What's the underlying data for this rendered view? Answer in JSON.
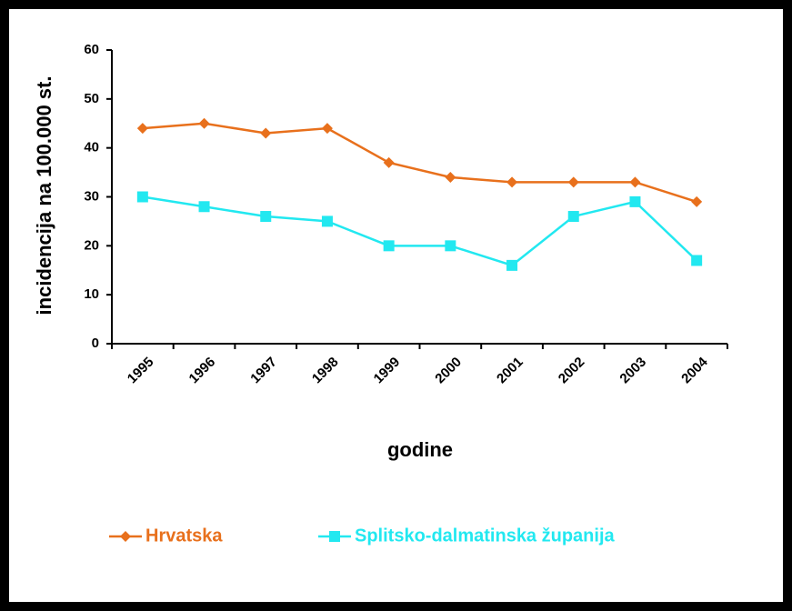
{
  "chart_data": {
    "type": "line",
    "x_label": "godine",
    "y_label": "incidencija na 100.000 st.",
    "categories": [
      "1995",
      "1996",
      "1997",
      "1998",
      "1999",
      "2000",
      "2001",
      "2002",
      "2003",
      "2004"
    ],
    "series": [
      {
        "name": "Hrvatska",
        "color": "#e8701c",
        "marker": "diamond",
        "values": [
          44,
          45,
          43,
          44,
          37,
          34,
          33,
          33,
          33,
          29
        ]
      },
      {
        "name": "Splitsko-dalmatinska županija",
        "color": "#22e8f0",
        "marker": "square",
        "values": [
          30,
          28,
          26,
          25,
          20,
          20,
          16,
          26,
          29,
          17
        ]
      }
    ],
    "ylim": [
      0,
      60
    ],
    "yticks": [
      0,
      10,
      20,
      30,
      40,
      50,
      60
    ],
    "legend": "bottom"
  }
}
